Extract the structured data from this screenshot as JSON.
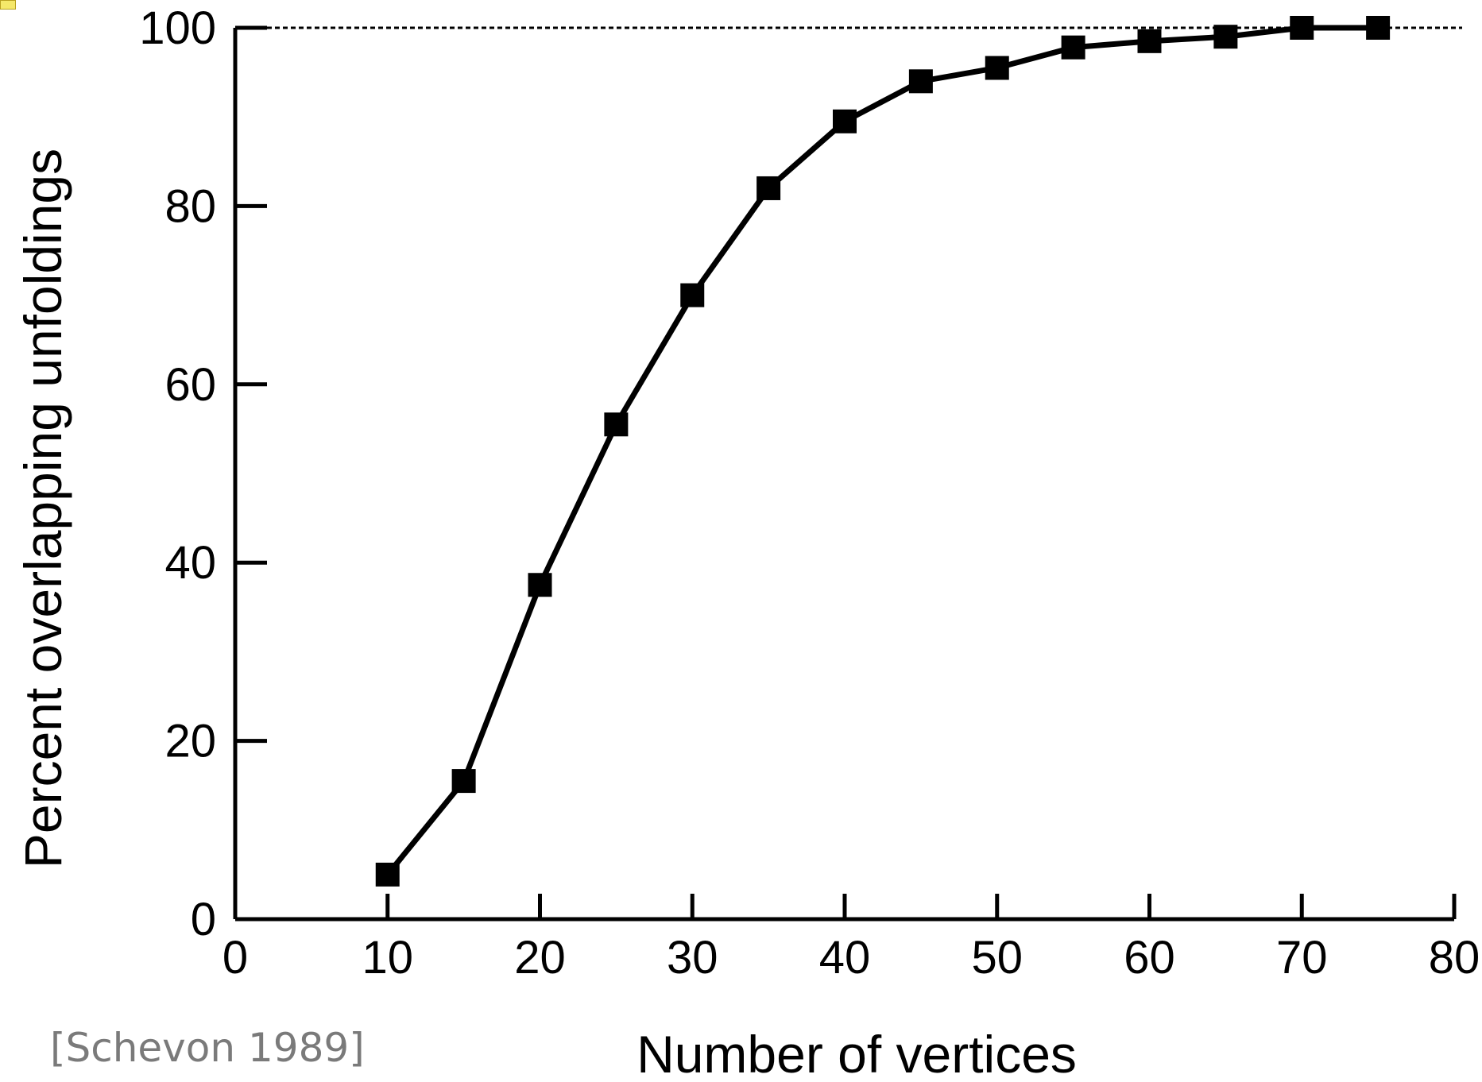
{
  "chart_data": {
    "type": "line",
    "title": "",
    "xlabel": "Number of vertices",
    "ylabel": "Percent overlapping unfoldings",
    "xlim": [
      0,
      80
    ],
    "ylim": [
      0,
      100
    ],
    "x_ticks": [
      0,
      10,
      20,
      30,
      40,
      50,
      60,
      70,
      80
    ],
    "y_ticks": [
      0,
      20,
      40,
      60,
      80,
      100
    ],
    "reference_line": {
      "y": 100,
      "style": "dashed"
    },
    "series": [
      {
        "marker": "square",
        "color": "#000000",
        "x": [
          10,
          15,
          20,
          25,
          30,
          35,
          40,
          45,
          50,
          55,
          60,
          65,
          70,
          75
        ],
        "y": [
          5,
          15.5,
          37.5,
          55.5,
          70,
          82,
          89.5,
          94,
          95.5,
          97.8,
          98.5,
          99,
          100,
          100
        ]
      }
    ]
  },
  "citation": "[Schevon 1989]",
  "colors": {
    "line": "#000000",
    "citation": "#7a7a7a"
  }
}
